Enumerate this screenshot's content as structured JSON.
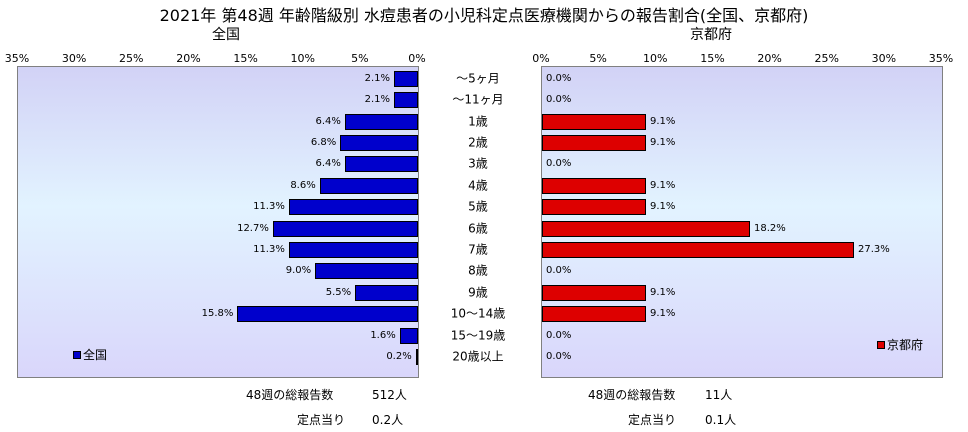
{
  "title": "2021年 第48週 年齢階級別 水痘患者の小児科定点医療機関からの報告割合(全国、京都府)",
  "colors": {
    "national": "#0000cc",
    "kyoto": "#dd0000"
  },
  "chart_data": [
    {
      "type": "bar",
      "orientation": "horizontal",
      "direction": "right-to-left",
      "title": "全国",
      "categories": [
        "～5ヶ月",
        "～11ヶ月",
        "1歳",
        "2歳",
        "3歳",
        "4歳",
        "5歳",
        "6歳",
        "7歳",
        "8歳",
        "9歳",
        "10～14歳",
        "15～19歳",
        "20歳以上"
      ],
      "series": [
        {
          "name": "全国",
          "values": [
            2.1,
            2.1,
            6.4,
            6.8,
            6.4,
            8.6,
            11.3,
            12.7,
            11.3,
            9.0,
            5.5,
            15.8,
            1.6,
            0.2
          ]
        }
      ],
      "value_labels": [
        "2.1%",
        "2.1%",
        "6.4%",
        "6.8%",
        "6.4%",
        "8.6%",
        "11.3%",
        "12.7%",
        "11.3%",
        "9.0%",
        "5.5%",
        "15.8%",
        "1.6%",
        "0.2%"
      ],
      "xlim": [
        0,
        35
      ],
      "tick_labels": [
        "35%",
        "30%",
        "25%",
        "20%",
        "15%",
        "10%",
        "5%",
        "0%"
      ],
      "legend": "bottom-left"
    },
    {
      "type": "bar",
      "orientation": "horizontal",
      "direction": "left-to-right",
      "title": "京都府",
      "categories": [
        "～5ヶ月",
        "～11ヶ月",
        "1歳",
        "2歳",
        "3歳",
        "4歳",
        "5歳",
        "6歳",
        "7歳",
        "8歳",
        "9歳",
        "10～14歳",
        "15～19歳",
        "20歳以上"
      ],
      "series": [
        {
          "name": "京都府",
          "values": [
            0.0,
            0.0,
            9.1,
            9.1,
            0.0,
            9.1,
            9.1,
            18.2,
            27.3,
            0.0,
            9.1,
            9.1,
            0.0,
            0.0
          ]
        }
      ],
      "value_labels": [
        "0.0%",
        "0.0%",
        "9.1%",
        "9.1%",
        "0.0%",
        "9.1%",
        "9.1%",
        "18.2%",
        "27.3%",
        "0.0%",
        "9.1%",
        "9.1%",
        "0.0%",
        "0.0%"
      ],
      "xlim": [
        0,
        35
      ],
      "tick_labels": [
        "0%",
        "5%",
        "10%",
        "15%",
        "20%",
        "25%",
        "30%",
        "35%"
      ],
      "legend": "bottom-right"
    }
  ],
  "info": {
    "national": {
      "total_label": "48週の総報告数",
      "total_value": "512人",
      "per_label": "定点当り",
      "per_value": "0.2人"
    },
    "kyoto": {
      "total_label": "48週の総報告数",
      "total_value": "11人",
      "per_label": "定点当り",
      "per_value": "0.1人"
    }
  }
}
